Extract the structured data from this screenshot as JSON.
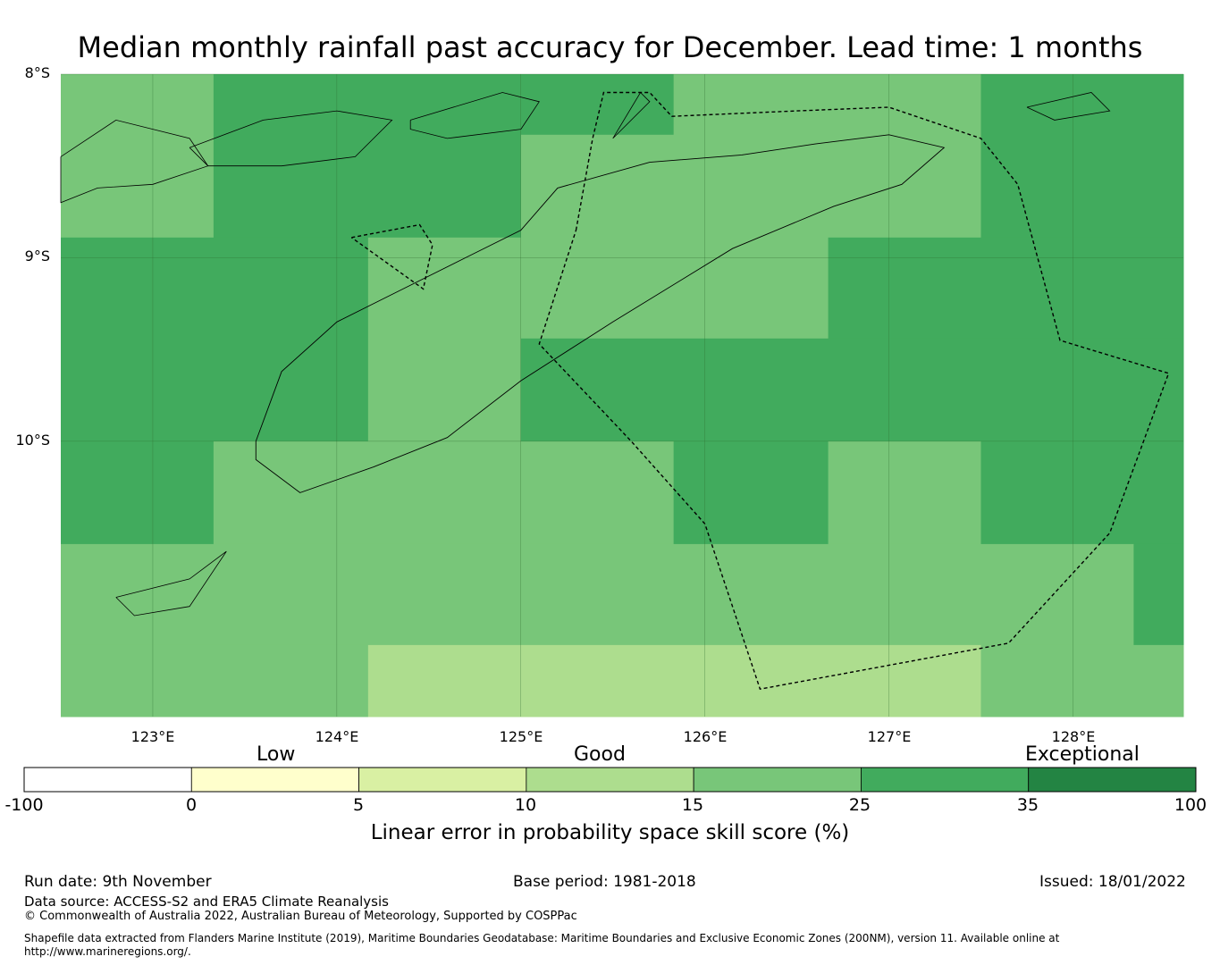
{
  "title": "Median monthly rainfall past accuracy for December. Lead time: 1 months",
  "map": {
    "lon_range": [
      122.5,
      128.6
    ],
    "lat_range": [
      -11.5,
      -8.0
    ],
    "lat_labels": [
      "8°S",
      "9°S",
      "10°S"
    ],
    "lon_labels": [
      "123°E",
      "124°E",
      "125°E",
      "126°E",
      "127°E",
      "128°E"
    ],
    "grid_cells": [
      {
        "lon0": 122.5,
        "lon1": 123.33,
        "lat0": -8.0,
        "lat1": -8.89,
        "cat": 4
      },
      {
        "lon0": 123.33,
        "lon1": 124.17,
        "lat0": -8.0,
        "lat1": -8.89,
        "cat": 5
      },
      {
        "lon0": 124.17,
        "lon1": 125.0,
        "lat0": -8.0,
        "lat1": -8.89,
        "cat": 5
      },
      {
        "lon0": 125.0,
        "lon1": 125.83,
        "lat0": -8.0,
        "lat1": -8.33,
        "cat": 5
      },
      {
        "lon0": 125.83,
        "lon1": 127.5,
        "lat0": -8.0,
        "lat1": -8.33,
        "cat": 4
      },
      {
        "lon0": 125.0,
        "lon1": 127.5,
        "lat0": -8.33,
        "lat1": -8.89,
        "cat": 4
      },
      {
        "lon0": 127.5,
        "lon1": 128.6,
        "lat0": -8.0,
        "lat1": -8.89,
        "cat": 5
      },
      {
        "lon0": 122.5,
        "lon1": 124.17,
        "lat0": -8.89,
        "lat1": -10.0,
        "cat": 5
      },
      {
        "lon0": 124.17,
        "lon1": 125.0,
        "lat0": -8.89,
        "lat1": -10.0,
        "cat": 4
      },
      {
        "lon0": 125.0,
        "lon1": 126.67,
        "lat0": -8.89,
        "lat1": -9.44,
        "cat": 4
      },
      {
        "lon0": 126.67,
        "lon1": 128.6,
        "lat0": -8.89,
        "lat1": -9.44,
        "cat": 5
      },
      {
        "lon0": 125.0,
        "lon1": 128.6,
        "lat0": -9.44,
        "lat1": -10.0,
        "cat": 5
      },
      {
        "lon0": 122.5,
        "lon1": 123.33,
        "lat0": -10.0,
        "lat1": -10.56,
        "cat": 5
      },
      {
        "lon0": 123.33,
        "lon1": 125.83,
        "lat0": -10.0,
        "lat1": -10.56,
        "cat": 4
      },
      {
        "lon0": 125.83,
        "lon1": 126.67,
        "lat0": -10.0,
        "lat1": -10.56,
        "cat": 5
      },
      {
        "lon0": 126.67,
        "lon1": 127.5,
        "lat0": -10.0,
        "lat1": -10.56,
        "cat": 4
      },
      {
        "lon0": 127.5,
        "lon1": 128.6,
        "lat0": -10.0,
        "lat1": -10.56,
        "cat": 5
      },
      {
        "lon0": 122.5,
        "lon1": 128.33,
        "lat0": -10.56,
        "lat1": -11.11,
        "cat": 4
      },
      {
        "lon0": 128.33,
        "lon1": 128.6,
        "lat0": -10.56,
        "lat1": -11.11,
        "cat": 5
      },
      {
        "lon0": 122.5,
        "lon1": 124.17,
        "lat0": -11.11,
        "lat1": -11.5,
        "cat": 4
      },
      {
        "lon0": 124.17,
        "lon1": 127.5,
        "lat0": -11.11,
        "lat1": -11.5,
        "cat": 3
      },
      {
        "lon0": 127.5,
        "lon1": 128.6,
        "lat0": -11.11,
        "lat1": -11.5,
        "cat": 4
      }
    ],
    "eez_boundary": [
      [
        124.08,
        -8.89
      ],
      [
        124.45,
        -8.82
      ],
      [
        124.52,
        -8.93
      ],
      [
        124.47,
        -9.17
      ],
      [
        124.08,
        -8.89
      ]
    ],
    "timor_leste_eez": [
      [
        125.3,
        -8.85
      ],
      [
        125.39,
        -8.35
      ],
      [
        125.45,
        -8.1
      ],
      [
        125.7,
        -8.1
      ],
      [
        125.82,
        -8.23
      ],
      [
        126.5,
        -8.2
      ],
      [
        127.0,
        -8.18
      ],
      [
        127.5,
        -8.35
      ],
      [
        127.7,
        -8.6
      ],
      [
        127.93,
        -9.45
      ],
      [
        128.52,
        -9.63
      ],
      [
        128.2,
        -10.5
      ],
      [
        127.65,
        -11.1
      ],
      [
        126.3,
        -11.35
      ],
      [
        126.0,
        -10.45
      ],
      [
        125.6,
        -10.0
      ],
      [
        125.1,
        -9.47
      ],
      [
        125.3,
        -8.85
      ]
    ],
    "timor_coast": [
      [
        123.56,
        -10.0
      ],
      [
        123.7,
        -9.62
      ],
      [
        124.0,
        -9.35
      ],
      [
        124.3,
        -9.2
      ],
      [
        124.7,
        -9.0
      ],
      [
        125.0,
        -8.85
      ],
      [
        125.2,
        -8.62
      ],
      [
        125.7,
        -8.48
      ],
      [
        126.2,
        -8.44
      ],
      [
        126.6,
        -8.38
      ],
      [
        127.0,
        -8.33
      ],
      [
        127.3,
        -8.4
      ],
      [
        127.07,
        -8.6
      ],
      [
        126.7,
        -8.72
      ],
      [
        126.15,
        -8.95
      ],
      [
        125.5,
        -9.35
      ],
      [
        125.0,
        -9.67
      ],
      [
        124.6,
        -9.98
      ],
      [
        124.2,
        -10.14
      ],
      [
        123.8,
        -10.28
      ],
      [
        123.56,
        -10.1
      ],
      [
        123.56,
        -10.0
      ]
    ],
    "colors": [
      "#ffffff",
      "#ffffcc",
      "#d9f0a3",
      "#addd8e",
      "#78c679",
      "#41ab5d",
      "#238443"
    ]
  },
  "colorbar": {
    "categories": [
      "Low",
      "Good",
      "Exceptional"
    ],
    "ticks": [
      "-100",
      "0",
      "5",
      "10",
      "15",
      "25",
      "35",
      "100"
    ],
    "colors": [
      "#ffffff",
      "#ffffcc",
      "#d9f0a3",
      "#addd8e",
      "#78c679",
      "#41ab5d",
      "#238443"
    ],
    "title": "Linear error in probability space skill score (%)"
  },
  "footer": {
    "run_date": "Run date: 9th November",
    "base_period": "Base period: 1981-2018",
    "issued": "Issued: 18/01/2022",
    "data_source": "Data source: ACCESS-S2 and ERA5 Climate Reanalysis",
    "copyright": "© Commonwealth of Australia 2022, Australian Bureau of Meteorology, Supported by COSPPac",
    "shapefile_line1": "Shapefile data extracted from Flanders Marine Institute (2019), Maritime Boundaries Geodatabase: Maritime Boundaries and Exclusive Economic Zones (200NM), version 11. Available online at",
    "shapefile_line2": "http://www.marineregions.org/."
  }
}
